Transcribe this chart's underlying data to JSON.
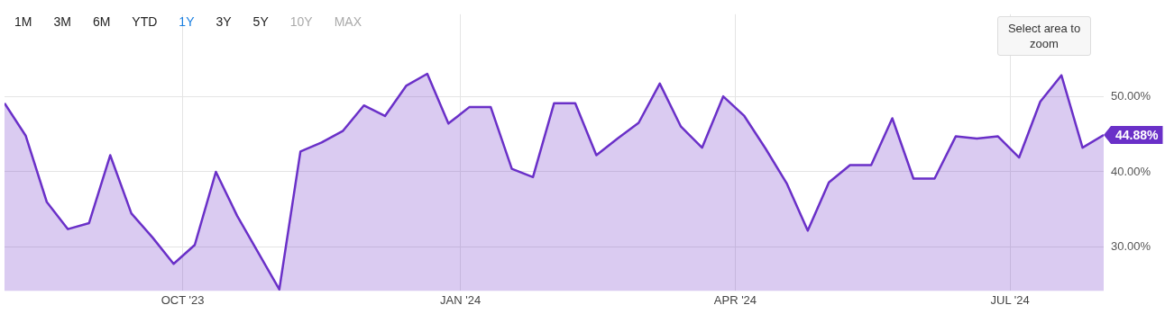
{
  "chart_data": {
    "type": "area",
    "x": [
      "2023-08-03",
      "2023-08-10",
      "2023-08-17",
      "2023-08-24",
      "2023-08-31",
      "2023-09-07",
      "2023-09-14",
      "2023-09-21",
      "2023-09-28",
      "2023-10-05",
      "2023-10-12",
      "2023-10-19",
      "2023-10-26",
      "2023-11-02",
      "2023-11-09",
      "2023-11-16",
      "2023-11-23",
      "2023-11-30",
      "2023-12-07",
      "2023-12-14",
      "2023-12-21",
      "2023-12-28",
      "2024-01-04",
      "2024-01-11",
      "2024-01-18",
      "2024-01-25",
      "2024-02-01",
      "2024-02-08",
      "2024-02-15",
      "2024-02-22",
      "2024-02-29",
      "2024-03-07",
      "2024-03-14",
      "2024-03-21",
      "2024-03-28",
      "2024-04-04",
      "2024-04-11",
      "2024-04-18",
      "2024-04-25",
      "2024-05-02",
      "2024-05-09",
      "2024-05-16",
      "2024-05-23",
      "2024-05-30",
      "2024-06-06",
      "2024-06-13",
      "2024-06-20",
      "2024-06-27",
      "2024-07-04",
      "2024-07-11",
      "2024-07-18",
      "2024-07-25",
      "2024-08-01"
    ],
    "series": [
      {
        "color": "#6a30c8",
        "values": [
          49.1,
          44.8,
          36.0,
          32.4,
          33.2,
          42.2,
          34.5,
          31.3,
          27.8,
          30.3,
          40.0,
          34.2,
          29.3,
          24.4,
          42.7,
          43.9,
          45.4,
          48.8,
          47.4,
          51.4,
          53.0,
          46.4,
          48.6,
          48.6,
          40.4,
          39.3,
          49.1,
          49.1,
          42.2,
          44.4,
          46.5,
          51.7,
          46.0,
          43.2,
          50.0,
          47.4,
          43.1,
          38.5,
          32.2,
          38.6,
          40.9,
          40.9,
          47.1,
          39.1,
          39.1,
          44.7,
          44.4,
          44.7,
          41.9,
          49.3,
          52.8,
          43.2,
          44.88
        ],
        "value_labels": [
          null,
          null,
          null,
          null,
          null,
          null,
          null,
          null,
          null,
          null,
          null,
          null,
          null,
          null,
          null,
          null,
          null,
          null,
          null,
          null,
          null,
          null,
          null,
          null,
          null,
          null,
          null,
          null,
          null,
          null,
          null,
          null,
          null,
          null,
          null,
          null,
          null,
          null,
          null,
          null,
          null,
          null,
          null,
          null,
          null,
          null,
          null,
          null,
          null,
          null,
          null,
          null,
          "44.88%"
        ]
      }
    ],
    "xlim": [
      "2023-08-03",
      "2024-08-01"
    ],
    "xticks": [
      {
        "value": "2023-10-01",
        "label": "OCT '23"
      },
      {
        "value": "2024-01-01",
        "label": "JAN '24"
      },
      {
        "value": "2024-04-01",
        "label": "APR '24"
      },
      {
        "value": "2024-07-01",
        "label": "JUL '24"
      }
    ],
    "ylim": [
      24.2,
      60.9
    ],
    "yticks": [
      {
        "value": 30,
        "label": "30.00%"
      },
      {
        "value": 40,
        "label": "40.00%"
      },
      {
        "value": 50,
        "label": "50.00%"
      }
    ],
    "grid": true,
    "legend": false,
    "marker": "none",
    "line_style": "solid",
    "annotations": [
      "1M",
      "3M",
      "6M",
      "YTD",
      "1Y",
      "3Y",
      "5Y",
      "10Y",
      "MAX",
      "Select area to zoom"
    ]
  }
}
